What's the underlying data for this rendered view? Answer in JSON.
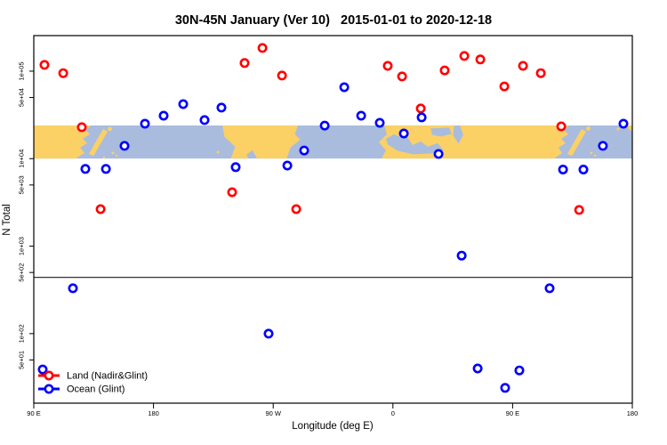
{
  "title": {
    "text": "30N-45N January (Ver 10)   2015-01-01 to 2020-12-18"
  },
  "axes": {
    "x_label": "Longitude (deg E)",
    "y_label": "N Total",
    "x_ticks": [
      {
        "deg": 0,
        "label": "90 E"
      },
      {
        "deg": 90,
        "label": "180"
      },
      {
        "deg": 180,
        "label": "90 W"
      },
      {
        "deg": 270,
        "label": "0"
      },
      {
        "deg": 360,
        "label": "90 E"
      },
      {
        "deg": 450,
        "label": "180"
      }
    ],
    "y_ticks": [
      {
        "value": 100000,
        "label": "1e+05"
      },
      {
        "value": 50000,
        "label": "5e+04"
      },
      {
        "value": 10000,
        "label": "1e+04"
      },
      {
        "value": 5000,
        "label": "5e+03"
      },
      {
        "value": 1000,
        "label": "1e+03"
      },
      {
        "value": 500,
        "label": "5e+02"
      },
      {
        "value": 100,
        "label": "1e+02"
      },
      {
        "value": 50,
        "label": "5e+01"
      }
    ]
  },
  "legend": {
    "items": [
      {
        "label": "Land (Nadir&Glint)",
        "color": "#FF0000"
      },
      {
        "label": "Ocean (Glint)",
        "color": "#0000FF"
      }
    ]
  },
  "chart_data": {
    "type": "scatter",
    "title": "30N-45N January (Ver 10)   2015-01-01 to 2020-12-18",
    "xlabel": "Longitude (deg E)",
    "ylabel": "N Total",
    "x_axis": {
      "note": "degrees east measured along axis starting at 90E (axis spans 450 deg, longitudes repeat)",
      "range_deg": [
        0,
        450
      ]
    },
    "y_axis": {
      "scale": "log",
      "range": [
        16,
        255000
      ]
    },
    "ref_line_value": 440,
    "map_band": {
      "value_top": 24000,
      "value_bottom": 10000,
      "land_color": "#FBD065",
      "ocean_color": "#A9BCDD",
      "note": "30N-45N world-map strip drawn across plot"
    },
    "series": [
      {
        "name": "Land (Nadir&Glint)",
        "color": "#FF0000",
        "points": [
          [
            8.0,
            118000
          ],
          [
            22.1,
            95000
          ],
          [
            36.1,
            22900
          ],
          [
            50.2,
            2650
          ],
          [
            149.1,
            4130
          ],
          [
            158.5,
            124000
          ],
          [
            171.9,
            184000
          ],
          [
            186.6,
            89000
          ],
          [
            197.3,
            2650
          ],
          [
            266.1,
            115000
          ],
          [
            276.9,
            87000
          ],
          [
            290.9,
            37400
          ],
          [
            308.9,
            102000
          ],
          [
            323.7,
            149000
          ],
          [
            335.7,
            136000
          ],
          [
            353.8,
            67000
          ],
          [
            367.8,
            115000
          ],
          [
            381.2,
            95000
          ],
          [
            396.6,
            23400
          ],
          [
            410.0,
            2590
          ]
        ]
      },
      {
        "name": "Ocean (Glint)",
        "color": "#0000FF",
        "points": [
          [
            6.7,
            39
          ],
          [
            29.4,
            330
          ],
          [
            38.8,
            7630
          ],
          [
            54.2,
            7630
          ],
          [
            68.2,
            14000
          ],
          [
            83.6,
            25100
          ],
          [
            97.6,
            31000
          ],
          [
            112.3,
            42000
          ],
          [
            128.4,
            27600
          ],
          [
            141.1,
            38300
          ],
          [
            151.8,
            8000
          ],
          [
            176.5,
            100
          ],
          [
            190.6,
            8350
          ],
          [
            203.3,
            12400
          ],
          [
            218.7,
            23900
          ],
          [
            233.4,
            65600
          ],
          [
            246.1,
            31000
          ],
          [
            260.1,
            25700
          ],
          [
            278.2,
            19400
          ],
          [
            291.6,
            29600
          ],
          [
            304.3,
            11300
          ],
          [
            321.7,
            780
          ],
          [
            333.7,
            40
          ],
          [
            354.4,
            24
          ],
          [
            365.1,
            38
          ],
          [
            387.8,
            330
          ],
          [
            397.9,
            7500
          ],
          [
            413.2,
            7500
          ],
          [
            427.9,
            14000
          ],
          [
            443.3,
            25100
          ]
        ]
      }
    ]
  }
}
